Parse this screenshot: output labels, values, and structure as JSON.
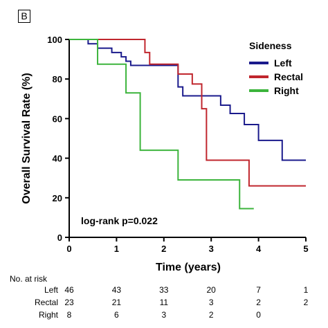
{
  "panel_label": "B",
  "chart_data": {
    "type": "line",
    "xlabel": "Time (years)",
    "ylabel": "Overall Survival Rate (%)",
    "xlim": [
      0,
      5
    ],
    "ylim": [
      0,
      100
    ],
    "x_ticks": [
      0,
      1,
      2,
      3,
      4,
      5
    ],
    "y_ticks": [
      0,
      20,
      40,
      60,
      80,
      100
    ],
    "grid": false,
    "legend": {
      "title": "Sideness",
      "placement": "top-right"
    },
    "annotation": "log-rank p=0.022",
    "series": [
      {
        "name": "Left",
        "color": "#1a1a8c",
        "step": true,
        "x": [
          0,
          0.4,
          0.6,
          0.9,
          1.1,
          1.2,
          1.3,
          1.5,
          2.0,
          2.3,
          2.4,
          2.8,
          3.0,
          3.2,
          3.4,
          3.7,
          4.0,
          4.5,
          5.0
        ],
        "y": [
          100,
          97.8,
          95.6,
          93.4,
          91.2,
          89.0,
          86.9,
          86.9,
          86.9,
          76.0,
          71.5,
          71.5,
          71.5,
          66.8,
          62.6,
          57.0,
          49.0,
          39.0,
          39.0
        ]
      },
      {
        "name": "Rectal",
        "color": "#c0262d",
        "step": true,
        "x": [
          0,
          1.4,
          1.6,
          1.7,
          2.3,
          2.6,
          2.8,
          2.9,
          3.8,
          5.0
        ],
        "y": [
          100,
          100,
          93.4,
          87.5,
          82.5,
          77.5,
          65.0,
          39.0,
          26.0,
          26.0
        ]
      },
      {
        "name": "Right",
        "color": "#3cb43c",
        "step": true,
        "x": [
          0,
          0.6,
          1.2,
          1.5,
          2.3,
          3.6,
          3.9
        ],
        "y": [
          100,
          87.5,
          73.0,
          44.0,
          29.0,
          14.5,
          14.5
        ]
      }
    ]
  },
  "risk_table": {
    "title": "No. at risk",
    "rows": [
      {
        "name": "Left",
        "values": [
          "46",
          "43",
          "33",
          "20",
          "7",
          "1"
        ]
      },
      {
        "name": "Rectal",
        "values": [
          "23",
          "21",
          "11",
          "3",
          "2",
          "2"
        ]
      },
      {
        "name": "Right",
        "values": [
          "8",
          "6",
          "3",
          "2",
          "0",
          ""
        ]
      }
    ]
  }
}
